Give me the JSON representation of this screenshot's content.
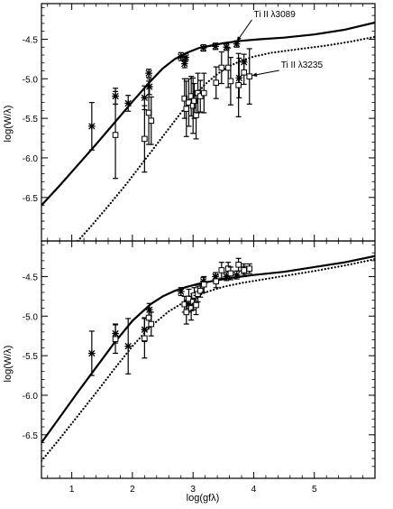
{
  "chart_data": {
    "type": "scatter",
    "xlabel": "log(gfλ)",
    "ylabel": "log(W/λ)",
    "xlim": [
      0.5,
      6.0
    ],
    "x_ticks": [
      1,
      2,
      3,
      4,
      5
    ],
    "x_tick_labels": [
      "1",
      "2",
      "3",
      "4",
      "5"
    ],
    "panels": [
      {
        "id": "top",
        "ylim": [
          -7.05,
          -4.05
        ],
        "y_ticks": [
          -4.5,
          -5.0,
          -5.5,
          -6.0,
          -6.5
        ],
        "y_tick_labels": [
          "-4.5",
          "-5.0",
          "-5.5",
          "-6.0",
          "-6.5"
        ],
        "curves": [
          {
            "style": "solid",
            "x": [
              0.5,
              0.8,
              1.1,
              1.4,
              1.7,
              2.0,
              2.3,
              2.5,
              2.7,
              2.9,
              3.1,
              3.3,
              3.5,
              3.8,
              4.1,
              4.5,
              5.0,
              5.5,
              6.0
            ],
            "y": [
              -6.6,
              -6.35,
              -6.09,
              -5.83,
              -5.56,
              -5.29,
              -5.03,
              -4.87,
              -4.75,
              -4.67,
              -4.61,
              -4.58,
              -4.55,
              -4.52,
              -4.5,
              -4.48,
              -4.44,
              -4.38,
              -4.29
            ]
          },
          {
            "style": "dotted",
            "x": [
              1.1,
              1.3,
              1.6,
              1.9,
              2.2,
              2.5,
              2.8,
              3.0,
              3.2,
              3.4,
              3.6,
              3.8,
              4.0,
              4.3,
              4.7,
              5.2,
              5.6,
              6.0
            ],
            "y": [
              -7.05,
              -6.88,
              -6.61,
              -6.33,
              -6.03,
              -5.73,
              -5.43,
              -5.24,
              -5.07,
              -4.94,
              -4.84,
              -4.77,
              -4.72,
              -4.67,
              -4.63,
              -4.58,
              -4.53,
              -4.47
            ]
          }
        ],
        "series": [
          {
            "marker": "asterisk",
            "points": [
              {
                "x": 1.33,
                "y": -5.6,
                "err": 0.3
              },
              {
                "x": 1.72,
                "y": -5.22,
                "err": 0.1
              },
              {
                "x": 1.93,
                "y": -5.31,
                "err": 0.1
              },
              {
                "x": 2.2,
                "y": -5.24,
                "err": 0.15
              },
              {
                "x": 2.27,
                "y": -4.93,
                "err": 0.05
              },
              {
                "x": 2.28,
                "y": -5.1,
                "err": 0.1
              },
              {
                "x": 2.8,
                "y": -4.72,
                "err": 0.05
              },
              {
                "x": 2.86,
                "y": -4.81,
                "err": 0.05
              },
              {
                "x": 2.88,
                "y": -4.73,
                "err": 0.05
              },
              {
                "x": 3.17,
                "y": -4.61,
                "err": 0.04
              },
              {
                "x": 3.37,
                "y": -4.59,
                "err": 0.04
              },
              {
                "x": 3.55,
                "y": -4.6,
                "err": 0.04
              },
              {
                "x": 3.72,
                "y": -4.56,
                "err": 0.04
              },
              {
                "x": 3.76,
                "y": -4.99,
                "err": 0.25
              },
              {
                "x": 3.84,
                "y": -4.79,
                "err": 0.1
              }
            ]
          },
          {
            "marker": "square",
            "points": [
              {
                "x": 1.72,
                "y": -5.71,
                "err": 0.55
              },
              {
                "x": 2.2,
                "y": -5.76,
                "err": 0.42
              },
              {
                "x": 2.27,
                "y": -5.43,
                "err": 0.4
              },
              {
                "x": 2.31,
                "y": -5.53,
                "err": 0.3
              },
              {
                "x": 2.86,
                "y": -5.25,
                "err": 0.25
              },
              {
                "x": 2.89,
                "y": -5.38,
                "err": 0.35
              },
              {
                "x": 2.93,
                "y": -5.3,
                "err": 0.3
              },
              {
                "x": 2.97,
                "y": -5.22,
                "err": 0.25
              },
              {
                "x": 3.0,
                "y": -5.34,
                "err": 0.35
              },
              {
                "x": 3.02,
                "y": -5.28,
                "err": 0.22
              },
              {
                "x": 3.05,
                "y": -5.46,
                "err": 0.3
              },
              {
                "x": 3.08,
                "y": -5.18,
                "err": 0.25
              },
              {
                "x": 3.12,
                "y": -5.22,
                "err": 0.2
              },
              {
                "x": 3.18,
                "y": -5.18,
                "err": 0.25
              },
              {
                "x": 3.38,
                "y": -5.05,
                "err": 0.2
              },
              {
                "x": 3.47,
                "y": -4.86,
                "err": 0.2
              },
              {
                "x": 3.58,
                "y": -4.86,
                "err": 0.25
              },
              {
                "x": 3.62,
                "y": -5.03,
                "err": 0.3
              },
              {
                "x": 3.75,
                "y": -5.08,
                "err": 0.4
              },
              {
                "x": 3.84,
                "y": -4.92,
                "err": 0.15
              },
              {
                "x": 3.93,
                "y": -4.97,
                "err": 0.35
              }
            ]
          }
        ],
        "annotations": [
          {
            "text": "Ti II λ3089",
            "x": 4.0,
            "y": -4.22,
            "arrow_to": [
              3.72,
              -4.53
            ]
          },
          {
            "text": "Ti II λ3235",
            "x": 4.45,
            "y": -4.86,
            "arrow_to": [
              3.97,
              -4.96
            ]
          }
        ]
      },
      {
        "id": "bottom",
        "ylim": [
          -7.05,
          -4.05
        ],
        "y_ticks": [
          -4.5,
          -5.0,
          -5.5,
          -6.0,
          -6.5
        ],
        "y_tick_labels": [
          "-4.5",
          "-5.0",
          "-5.5",
          "-6.0",
          "-6.5"
        ],
        "curves": [
          {
            "style": "solid",
            "x": [
              0.5,
              0.8,
              1.1,
              1.4,
              1.7,
              2.0,
              2.3,
              2.5,
              2.7,
              2.9,
              3.1,
              3.3,
              3.6,
              4.0,
              4.5,
              5.0,
              5.5,
              6.0
            ],
            "y": [
              -6.6,
              -6.28,
              -5.96,
              -5.65,
              -5.34,
              -5.06,
              -4.85,
              -4.75,
              -4.68,
              -4.63,
              -4.59,
              -4.56,
              -4.52,
              -4.48,
              -4.44,
              -4.38,
              -4.32,
              -4.24
            ]
          },
          {
            "style": "dotted",
            "x": [
              0.5,
              0.8,
              1.1,
              1.4,
              1.7,
              2.0,
              2.3,
              2.6,
              2.9,
              3.2,
              3.5,
              3.8,
              4.2,
              4.6,
              5.0,
              5.5,
              6.0
            ],
            "y": [
              -6.83,
              -6.55,
              -6.26,
              -5.97,
              -5.67,
              -5.38,
              -5.13,
              -4.94,
              -4.8,
              -4.7,
              -4.63,
              -4.58,
              -4.53,
              -4.48,
              -4.43,
              -4.36,
              -4.28
            ]
          }
        ],
        "series": [
          {
            "marker": "asterisk",
            "points": [
              {
                "x": 1.33,
                "y": -5.47,
                "err": 0.28
              },
              {
                "x": 1.72,
                "y": -5.22,
                "err": 0.12
              },
              {
                "x": 1.93,
                "y": -5.38,
                "err": 0.35
              },
              {
                "x": 2.2,
                "y": -5.17,
                "err": 0.15
              },
              {
                "x": 2.28,
                "y": -4.92,
                "err": 0.08
              },
              {
                "x": 2.8,
                "y": -4.69,
                "err": 0.05
              },
              {
                "x": 2.93,
                "y": -4.85,
                "err": 0.1
              },
              {
                "x": 3.17,
                "y": -4.56,
                "err": 0.05
              },
              {
                "x": 3.37,
                "y": -4.5,
                "err": 0.05
              },
              {
                "x": 3.55,
                "y": -4.5,
                "err": 0.05
              },
              {
                "x": 3.72,
                "y": -4.48,
                "err": 0.05
              },
              {
                "x": 3.84,
                "y": -4.42,
                "err": 0.05
              }
            ]
          },
          {
            "marker": "square",
            "points": [
              {
                "x": 1.72,
                "y": -5.29,
                "err": 0.18
              },
              {
                "x": 2.2,
                "y": -5.28,
                "err": 0.25
              },
              {
                "x": 2.27,
                "y": -5.02,
                "err": 0.12
              },
              {
                "x": 2.31,
                "y": -5.1,
                "err": 0.15
              },
              {
                "x": 2.86,
                "y": -4.85,
                "err": 0.1
              },
              {
                "x": 2.89,
                "y": -4.95,
                "err": 0.15
              },
              {
                "x": 2.93,
                "y": -4.78,
                "err": 0.12
              },
              {
                "x": 2.97,
                "y": -4.9,
                "err": 0.15
              },
              {
                "x": 3.0,
                "y": -4.82,
                "err": 0.1
              },
              {
                "x": 3.02,
                "y": -4.74,
                "err": 0.1
              },
              {
                "x": 3.05,
                "y": -4.86,
                "err": 0.12
              },
              {
                "x": 3.08,
                "y": -4.72,
                "err": 0.1
              },
              {
                "x": 3.12,
                "y": -4.68,
                "err": 0.08
              },
              {
                "x": 3.18,
                "y": -4.6,
                "err": 0.1
              },
              {
                "x": 3.38,
                "y": -4.56,
                "err": 0.08
              },
              {
                "x": 3.47,
                "y": -4.42,
                "err": 0.1
              },
              {
                "x": 3.58,
                "y": -4.4,
                "err": 0.08
              },
              {
                "x": 3.62,
                "y": -4.46,
                "err": 0.08
              },
              {
                "x": 3.75,
                "y": -4.35,
                "err": 0.08
              },
              {
                "x": 3.84,
                "y": -4.42,
                "err": 0.08
              },
              {
                "x": 3.93,
                "y": -4.4,
                "err": 0.06
              }
            ]
          }
        ],
        "annotations": []
      }
    ]
  }
}
